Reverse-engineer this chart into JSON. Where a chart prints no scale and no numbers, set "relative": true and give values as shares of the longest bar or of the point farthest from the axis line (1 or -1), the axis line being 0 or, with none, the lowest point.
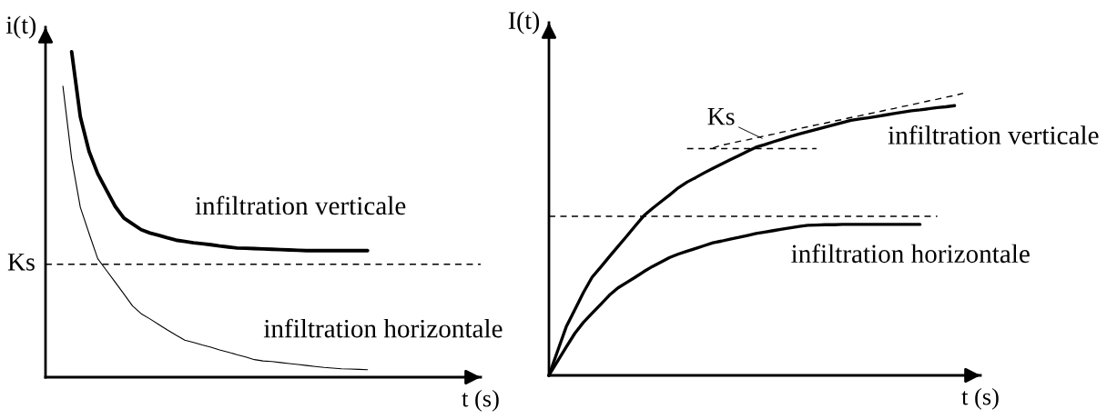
{
  "chart_data": [
    {
      "type": "line",
      "relative": true,
      "xlabel": "t (s)",
      "ylabel": "i(t)",
      "categories": [
        null,
        null,
        null,
        null,
        null,
        null,
        null,
        null,
        null,
        null,
        null,
        null,
        null,
        null,
        null,
        null,
        null,
        null,
        null,
        null,
        null,
        null,
        null,
        null,
        null,
        null,
        null,
        null,
        null,
        null,
        null,
        null,
        null,
        null,
        null,
        null,
        null,
        null,
        null,
        null,
        null,
        null,
        null,
        null,
        null,
        null,
        null,
        null,
        null,
        null
      ],
      "series": [
        {
          "name": "infiltration verticale",
          "color": "#000000",
          "values": [
            null,
            null,
            null,
            1,
            0.8,
            0.694,
            0.625,
            0.575,
            0.525,
            0.489,
            0.471,
            0.453,
            0.443,
            0.436,
            0.428,
            0.421,
            0.417,
            0.413,
            0.41,
            0.407,
            0.403,
            0.4,
            0.397,
            0.396,
            0.395,
            0.394,
            0.393,
            0.392,
            0.391,
            0.39,
            0.389,
            0.389,
            0.389,
            0.389,
            0.389,
            0.389,
            0.389,
            0.389,
            null,
            null,
            null,
            null,
            null,
            null,
            null,
            null,
            null,
            null,
            null,
            null
          ]
        },
        {
          "name": "infiltration horizontale",
          "color": "#000000",
          "values": [
            null,
            null,
            0.894,
            0.672,
            0.522,
            0.442,
            0.364,
            0.328,
            0.292,
            0.256,
            0.219,
            0.195,
            0.179,
            0.162,
            0.145,
            0.129,
            0.114,
            0.107,
            0.099,
            0.092,
            0.084,
            0.077,
            0.069,
            0.062,
            0.054,
            0.05,
            0.048,
            0.045,
            0.042,
            0.039,
            0.036,
            0.033,
            0.03,
            0.028,
            0.026,
            0.025,
            0.024,
            0.023,
            null,
            null,
            null,
            null,
            null,
            null,
            null,
            null,
            null,
            null,
            null,
            null
          ]
        }
      ],
      "ref_lines": [
        {
          "axis": "y",
          "value": 0.347,
          "label": "Ks",
          "line_style": "dashed",
          "color": "#000000"
        }
      ]
    },
    {
      "type": "line",
      "relative": true,
      "xlabel": "t (s)",
      "ylabel": "I(t)",
      "categories": [
        null,
        null,
        null,
        null,
        null,
        null,
        null,
        null,
        null,
        null,
        null,
        null,
        null,
        null,
        null,
        null,
        null,
        null,
        null,
        null,
        null,
        null,
        null,
        null,
        null,
        null,
        null,
        null,
        null,
        null,
        null,
        null,
        null,
        null,
        null,
        null,
        null,
        null,
        null,
        null,
        null,
        null,
        null,
        null,
        null,
        null,
        null,
        null,
        null,
        null
      ],
      "series": [
        {
          "name": "infiltration verticale",
          "color": "#000000",
          "values": [
            0,
            0.086,
            0.172,
            0.233,
            0.294,
            0.348,
            0.384,
            0.421,
            0.457,
            0.493,
            0.53,
            0.566,
            0.592,
            0.616,
            0.64,
            0.665,
            0.685,
            0.701,
            0.718,
            0.734,
            0.749,
            0.764,
            0.779,
            0.794,
            0.809,
            0.818,
            0.828,
            0.837,
            0.847,
            0.856,
            0.864,
            0.872,
            0.88,
            0.888,
            0.896,
            0.904,
            0.909,
            0.913,
            0.918,
            0.923,
            0.928,
            0.933,
            0.938,
            0.941,
            0.945,
            0.949,
            0.952,
            0.956,
            null,
            null
          ]
        },
        {
          "name": "infiltration horizontale",
          "color": "#000000",
          "values": [
            0,
            0.05,
            0.1,
            0.149,
            0.188,
            0.22,
            0.252,
            0.284,
            0.31,
            0.329,
            0.348,
            0.368,
            0.386,
            0.402,
            0.418,
            0.43,
            0.44,
            0.45,
            0.46,
            0.47,
            0.476,
            0.483,
            0.489,
            0.496,
            0.503,
            0.508,
            0.513,
            0.518,
            0.523,
            0.528,
            0.532,
            0.533,
            0.534,
            0.534,
            0.535,
            0.535,
            0.535,
            0.535,
            0.535,
            0.535,
            0.535,
            0.535,
            0.535,
            0.535,
            null,
            null,
            null,
            null,
            null,
            null
          ]
        },
        {
          "color": "#000000",
          "line_style": "dashed",
          "values": [
            0.564,
            0.564,
            0.564,
            0.564,
            0.564,
            0.564,
            0.564,
            0.564,
            0.564,
            0.564,
            0.564,
            0.564,
            0.564,
            0.564,
            0.564,
            0.564,
            0.564,
            0.564,
            0.564,
            0.564,
            0.564,
            0.564,
            0.564,
            0.564,
            0.564,
            0.564,
            0.564,
            0.564,
            0.564,
            0.564,
            0.564,
            0.564,
            0.564,
            0.564,
            0.564,
            0.564,
            0.564,
            0.564,
            0.564,
            0.564,
            0.564,
            0.564,
            0.564,
            0.564,
            0.564,
            0.564,
            null,
            null,
            null,
            null
          ]
        },
        {
          "color": "#000000",
          "line_style": "dashed",
          "values": [
            null,
            null,
            null,
            null,
            null,
            null,
            null,
            null,
            null,
            null,
            null,
            null,
            null,
            null,
            null,
            null,
            0.804,
            0.804,
            0.804,
            0.804,
            0.804,
            0.804,
            0.804,
            0.804,
            0.804,
            0.804,
            0.804,
            0.804,
            0.804,
            0.804,
            0.804,
            0.804,
            null,
            null,
            null,
            null,
            null,
            null,
            null,
            null,
            null,
            null,
            null,
            null,
            null,
            null,
            null,
            null,
            null,
            null
          ]
        },
        {
          "color": "#000000",
          "line_style": "dashed",
          "values": [
            null,
            null,
            null,
            null,
            null,
            null,
            null,
            null,
            null,
            null,
            null,
            null,
            null,
            null,
            null,
            null,
            null,
            null,
            null,
            0.806,
            0.816,
            0.822,
            0.829,
            0.835,
            0.842,
            0.849,
            0.855,
            0.862,
            0.868,
            0.875,
            0.881,
            0.888,
            0.894,
            0.901,
            0.907,
            0.914,
            0.92,
            0.927,
            0.933,
            0.94,
            0.946,
            0.953,
            0.959,
            0.966,
            0.973,
            0.979,
            0.986,
            0.992,
            1,
            null
          ]
        }
      ],
      "annotations": [
        "Ks"
      ]
    }
  ]
}
